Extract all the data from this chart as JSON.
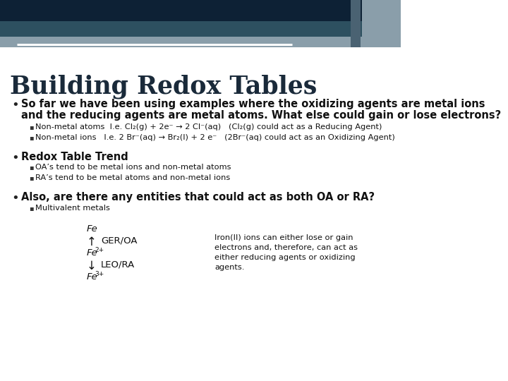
{
  "title": "Building Redox Tables",
  "title_color": "#1a2a3a",
  "bg_color": "#ffffff",
  "header_bar1_color": "#0d2135",
  "header_bar2_color": "#2d5060",
  "header_bar3_color": "#8a9eaa",
  "bullet1_line1": "So far we have been using examples where the oxidizing agents are metal ions",
  "bullet1_line2": "and the reducing agents are metal atoms. What else could gain or lose electrons?",
  "sub1a": "Non-metal atoms  I.e. Cl₂(g) + 2e⁻ → 2 Cl⁻(aq)   (Cl₂(g) could act as a Reducing Agent)",
  "sub1b": "Non-metal ions   I.e. 2 Br⁻(aq) → Br₂(l) + 2 e⁻   (2Br⁻(aq) could act as an Oxidizing Agent)",
  "bullet2_bold": "Redox Table Trend",
  "sub2a": "OA’s tend to be metal ions and non-metal atoms",
  "sub2b": "RA’s tend to be metal atoms and non-metal ions",
  "bullet3_bold": "Also, are there any entities that could act as both OA or RA?",
  "sub3a": "Multivalent metals",
  "diagram_fe_top": "Fe",
  "diagram_arrow_up": "↑",
  "diagram_ger_oa": "GER/OA",
  "diagram_arrow_down": "↓",
  "diagram_leo_ra": "LEO/RA",
  "diagram_text": "Iron(II) ions can either lose or gain\nelectrons and, therefore, can act as\neither reducing agents or oxidizing\nagents.",
  "accent_bar_colors": [
    "#4a6272",
    "#8a9eaa"
  ]
}
